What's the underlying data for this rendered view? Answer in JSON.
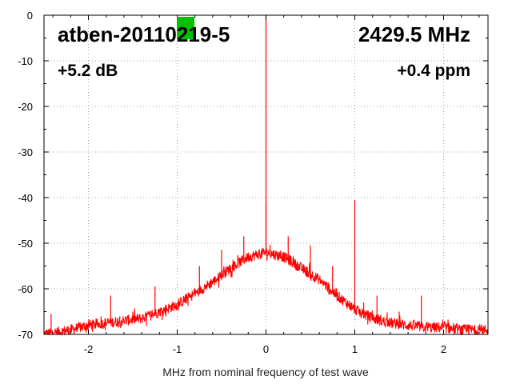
{
  "chart_data": {
    "type": "line",
    "title": "",
    "xlabel": "MHz from nominal frequency of test wave",
    "ylabel": "",
    "xlim": [
      -2.5,
      2.5
    ],
    "ylim": [
      -70,
      0
    ],
    "grid": true,
    "x_ticks": [
      -2,
      -1,
      0,
      1,
      2
    ],
    "x_tick_labels": [
      "-2",
      "-1",
      "0",
      "1",
      "2"
    ],
    "y_ticks": [
      0,
      -10,
      -20,
      -30,
      -40,
      -50,
      -60,
      -70
    ],
    "y_tick_labels": [
      "0",
      "-10",
      "-20",
      "-30",
      "-40",
      "-50",
      "-60",
      "-70"
    ],
    "annotations": {
      "device": "atben-20110219-5",
      "frequency": "2429.5 MHz",
      "level": "+5.2 dB",
      "offset": "+0.4 ppm"
    },
    "indicator_color": "#00c000",
    "series": [
      {
        "name": "",
        "color": "#ff0000",
        "envelope": {
          "x": [
            -2.5,
            -2.2,
            -2.0,
            -1.8,
            -1.6,
            -1.4,
            -1.2,
            -1.0,
            -0.8,
            -0.6,
            -0.4,
            -0.2,
            0.0,
            0.2,
            0.4,
            0.6,
            0.8,
            1.0,
            1.2,
            1.4,
            1.6,
            1.8,
            2.0,
            2.2,
            2.5
          ],
          "y": [
            -70,
            -69,
            -68,
            -67.5,
            -67,
            -66.5,
            -65,
            -63.5,
            -61,
            -58.5,
            -55.5,
            -53,
            -52,
            -53,
            -55.5,
            -58,
            -61.5,
            -64.5,
            -66.5,
            -67.5,
            -68,
            -68.5,
            -68.5,
            -69,
            -69
          ]
        },
        "spikes": [
          {
            "x": 0.0,
            "y": 0.0
          },
          {
            "x": 0.0,
            "y": -41.5
          },
          {
            "x": -0.25,
            "y": -48.5
          },
          {
            "x": 0.25,
            "y": -48.5
          },
          {
            "x": -0.5,
            "y": -51.5
          },
          {
            "x": 0.5,
            "y": -50.5
          },
          {
            "x": -0.75,
            "y": -55
          },
          {
            "x": 0.75,
            "y": -55
          },
          {
            "x": 1.0,
            "y": -40.5
          },
          {
            "x": -1.25,
            "y": -59.5
          },
          {
            "x": 1.25,
            "y": -61.5
          },
          {
            "x": -1.75,
            "y": -61.5
          },
          {
            "x": 1.75,
            "y": -61.5
          },
          {
            "x": -1.5,
            "y": -65
          },
          {
            "x": -2.42,
            "y": -65.5
          },
          {
            "x": 1.1,
            "y": -63
          },
          {
            "x": 1.5,
            "y": -65
          }
        ]
      }
    ]
  }
}
